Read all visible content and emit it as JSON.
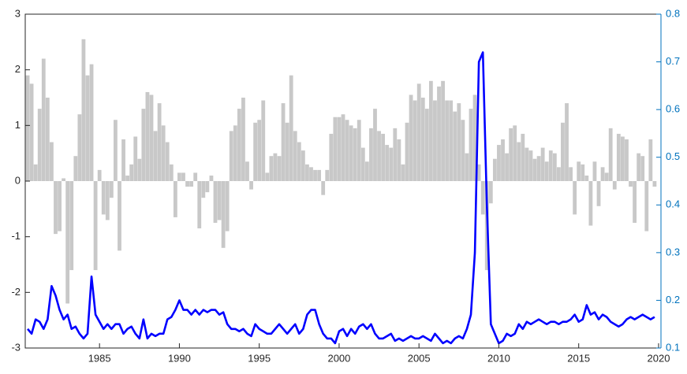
{
  "chart_data": {
    "type": "bar",
    "x": [
      1980.5,
      1980.75,
      1981,
      1981.25,
      1981.5,
      1981.75,
      1982,
      1982.25,
      1982.5,
      1982.75,
      1983,
      1983.25,
      1983.5,
      1983.75,
      1984,
      1984.25,
      1984.5,
      1984.75,
      1985,
      1985.25,
      1985.5,
      1985.75,
      1986,
      1986.25,
      1986.5,
      1986.75,
      1987,
      1987.25,
      1987.5,
      1987.75,
      1988,
      1988.25,
      1988.5,
      1988.75,
      1989,
      1989.25,
      1989.5,
      1989.75,
      1990,
      1990.25,
      1990.5,
      1990.75,
      1991,
      1991.25,
      1991.5,
      1991.75,
      1992,
      1992.25,
      1992.5,
      1992.75,
      1993,
      1993.25,
      1993.5,
      1993.75,
      1994,
      1994.25,
      1994.5,
      1994.75,
      1995,
      1995.25,
      1995.5,
      1995.75,
      1996,
      1996.25,
      1996.5,
      1996.75,
      1997,
      1997.25,
      1997.5,
      1997.75,
      1998,
      1998.25,
      1998.5,
      1998.75,
      1999,
      1999.25,
      1999.5,
      1999.75,
      2000,
      2000.25,
      2000.5,
      2000.75,
      2001,
      2001.25,
      2001.5,
      2001.75,
      2002,
      2002.25,
      2002.5,
      2002.75,
      2003,
      2003.25,
      2003.5,
      2003.75,
      2004,
      2004.25,
      2004.5,
      2004.75,
      2005,
      2005.25,
      2005.5,
      2005.75,
      2006,
      2006.25,
      2006.5,
      2006.75,
      2007,
      2007.25,
      2007.5,
      2007.75,
      2008,
      2008.25,
      2008.5,
      2008.75,
      2009,
      2009.25,
      2009.5,
      2009.75,
      2010,
      2010.25,
      2010.5,
      2010.75,
      2011,
      2011.25,
      2011.5,
      2011.75,
      2012,
      2012.25,
      2012.5,
      2012.75,
      2013,
      2013.25,
      2013.5,
      2013.75,
      2014,
      2014.25,
      2014.5,
      2014.75,
      2015,
      2015.25,
      2015.5,
      2015.75,
      2016,
      2016.25,
      2016.5,
      2016.75,
      2017,
      2017.25,
      2017.5,
      2017.75,
      2018,
      2018.25,
      2018.5,
      2018.75,
      2019,
      2019.25,
      2019.5,
      2019.75
    ],
    "series": [
      {
        "type": "bar",
        "color": "#c8c8c8",
        "values": [
          1.9,
          1.75,
          0.3,
          1.3,
          2.2,
          1.5,
          0.7,
          -0.95,
          -0.9,
          0.05,
          -2.2,
          -1.6,
          0.45,
          1.2,
          2.55,
          1.9,
          2.1,
          -1.6,
          0.2,
          -0.6,
          -0.7,
          -0.3,
          1.1,
          -1.25,
          0.75,
          0.1,
          0.3,
          0.8,
          0.4,
          1.3,
          1.6,
          1.55,
          0.9,
          1.4,
          1.0,
          0.7,
          0.3,
          -0.65,
          0.15,
          0.15,
          -0.1,
          -0.1,
          0.15,
          -0.85,
          -0.3,
          -0.2,
          0.1,
          -0.75,
          -0.7,
          -1.2,
          -0.9,
          0.9,
          1.0,
          1.3,
          1.5,
          0.35,
          -0.15,
          1.05,
          1.1,
          1.45,
          0.15,
          0.45,
          0.5,
          0.45,
          1.4,
          1.05,
          1.9,
          0.9,
          0.7,
          0.55,
          0.3,
          0.25,
          0.2,
          0.2,
          -0.25,
          0.2,
          0.85,
          1.15,
          1.15,
          1.2,
          1.1,
          1.0,
          0.95,
          1.1,
          0.6,
          0.35,
          0.95,
          1.3,
          0.9,
          0.85,
          0.65,
          0.6,
          0.95,
          0.75,
          0.3,
          1.05,
          1.55,
          1.45,
          1.75,
          1.5,
          1.3,
          1.8,
          1.45,
          1.7,
          1.8,
          1.45,
          1.45,
          1.25,
          1.4,
          1.1,
          0.5,
          1.3,
          1.55,
          0.3,
          -0.6,
          -1.6,
          -0.4,
          0.4,
          0.65,
          0.75,
          0.5,
          0.95,
          1.0,
          0.7,
          0.85,
          0.6,
          0.55,
          0.4,
          0.45,
          0.6,
          0.35,
          0.55,
          0.5,
          0.25,
          1.05,
          1.4,
          0.25,
          -0.6,
          0.35,
          0.3,
          0.1,
          -0.8,
          0.35,
          -0.45,
          0.25,
          0.15,
          0.95,
          -0.15,
          0.85,
          0.8,
          0.75,
          -0.1,
          -0.75,
          0.5,
          0.45,
          -0.9,
          0.75,
          -0.1
        ]
      },
      {
        "type": "line",
        "axis": "y2",
        "color": "#0000ff",
        "values": [
          0.14,
          0.13,
          0.16,
          0.155,
          0.14,
          0.16,
          0.23,
          0.21,
          0.18,
          0.16,
          0.17,
          0.14,
          0.145,
          0.13,
          0.12,
          0.13,
          0.25,
          0.17,
          0.155,
          0.14,
          0.15,
          0.14,
          0.15,
          0.15,
          0.13,
          0.14,
          0.145,
          0.13,
          0.12,
          0.16,
          0.12,
          0.13,
          0.125,
          0.13,
          0.13,
          0.16,
          0.165,
          0.18,
          0.2,
          0.18,
          0.18,
          0.17,
          0.18,
          0.17,
          0.18,
          0.175,
          0.18,
          0.18,
          0.17,
          0.175,
          0.15,
          0.14,
          0.14,
          0.135,
          0.14,
          0.13,
          0.125,
          0.15,
          0.14,
          0.135,
          0.13,
          0.13,
          0.14,
          0.15,
          0.14,
          0.13,
          0.14,
          0.15,
          0.13,
          0.14,
          0.17,
          0.18,
          0.18,
          0.15,
          0.13,
          0.12,
          0.12,
          0.11,
          0.135,
          0.14,
          0.125,
          0.14,
          0.13,
          0.145,
          0.15,
          0.14,
          0.15,
          0.13,
          0.12,
          0.12,
          0.125,
          0.13,
          0.115,
          0.12,
          0.115,
          0.12,
          0.125,
          0.12,
          0.12,
          0.125,
          0.12,
          0.115,
          0.13,
          0.12,
          0.11,
          0.115,
          0.11,
          0.12,
          0.125,
          0.12,
          0.14,
          0.17,
          0.3,
          0.7,
          0.72,
          0.4,
          0.15,
          0.13,
          0.11,
          0.115,
          0.13,
          0.125,
          0.13,
          0.15,
          0.14,
          0.155,
          0.15,
          0.155,
          0.16,
          0.155,
          0.15,
          0.155,
          0.155,
          0.15,
          0.155,
          0.155,
          0.16,
          0.17,
          0.155,
          0.16,
          0.19,
          0.17,
          0.175,
          0.16,
          0.17,
          0.165,
          0.155,
          0.15,
          0.145,
          0.15,
          0.16,
          0.165,
          0.16,
          0.165,
          0.17,
          0.165,
          0.16,
          0.165
        ]
      }
    ],
    "xlim": [
      1980.35,
      2020.15
    ],
    "xticks": [
      1985,
      1990,
      1995,
      2000,
      2005,
      2010,
      2015,
      2020
    ],
    "ylim": [
      -3,
      3
    ],
    "yticks": [
      -3,
      -2,
      -1,
      0,
      1,
      2,
      3
    ],
    "y2lim": [
      0.1,
      0.8
    ],
    "y2ticks": [
      0.1,
      0.2,
      0.3,
      0.4,
      0.5,
      0.6,
      0.7,
      0.8
    ],
    "y2color": "#0072bd"
  }
}
